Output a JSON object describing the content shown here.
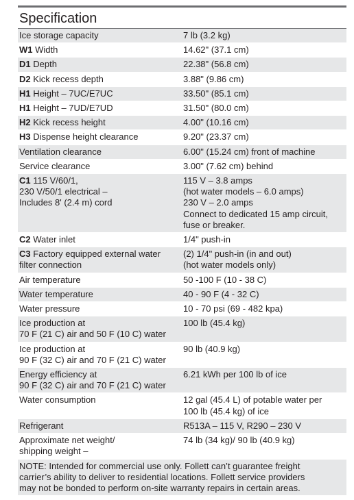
{
  "title": "Specification",
  "table": {
    "rows": [
      {
        "label": [
          "Ice storage capacity"
        ],
        "value": [
          "7 lb (3.2 kg)"
        ]
      },
      {
        "code": "W1",
        "label": [
          "Width"
        ],
        "value": [
          "14.62\" (37.1 cm)"
        ]
      },
      {
        "code": "D1",
        "label": [
          "Depth"
        ],
        "value": [
          "22.38\" (56.8 cm)"
        ]
      },
      {
        "code": "D2",
        "label": [
          "Kick recess depth"
        ],
        "value": [
          "3.88\" (9.86 cm)"
        ]
      },
      {
        "code": "H1",
        "label": [
          "Height – 7UC/E7UC"
        ],
        "value": [
          "33.50\" (85.1 cm)"
        ]
      },
      {
        "code": "H1",
        "label": [
          "Height – 7UD/E7UD"
        ],
        "value": [
          "31.50\" (80.0 cm)"
        ]
      },
      {
        "code": "H2",
        "label": [
          "Kick recess height"
        ],
        "value": [
          "4.00\" (10.16 cm)"
        ]
      },
      {
        "code": "H3",
        "label": [
          "Dispense height clearance"
        ],
        "value": [
          "9.20\" (23.37 cm)"
        ]
      },
      {
        "label": [
          "Ventilation clearance"
        ],
        "value": [
          "6.00\" (15.24 cm) front of machine"
        ]
      },
      {
        "label": [
          "Service clearance"
        ],
        "value": [
          "3.00\" (7.62 cm) behind"
        ]
      },
      {
        "code": "C1",
        "label": [
          "115 V/60/1,",
          "230 V/50/1 electrical –",
          "Includes 8' (2.4 m) cord"
        ],
        "value": [
          "115 V – 3.8 amps",
          "(hot water models – 6.0 amps)",
          "230 V – 2.0 amps",
          "Connect to dedicated 15 amp circuit,",
          "fuse or breaker."
        ]
      },
      {
        "code": "C2",
        "label": [
          "Water inlet"
        ],
        "value": [
          "1/4\" push-in"
        ]
      },
      {
        "code": "C3",
        "label": [
          "Factory equipped external water",
          "filter connection"
        ],
        "value": [
          "(2) 1/4\" push-in (in and out)",
          "(hot water models only)"
        ]
      },
      {
        "label": [
          "Air temperature"
        ],
        "value": [
          "50 -100 F (10 - 38 C)"
        ]
      },
      {
        "label": [
          "Water temperature"
        ],
        "value": [
          "40 - 90 F (4 - 32 C)"
        ]
      },
      {
        "label": [
          "Water pressure"
        ],
        "value": [
          "10 - 70 psi (69 - 482 kpa)"
        ]
      },
      {
        "label": [
          "Ice production at",
          "70 F (21 C) air and 50 F (10 C) water"
        ],
        "value": [
          "100 lb (45.4 kg)"
        ]
      },
      {
        "label": [
          "Ice production at",
          "90 F (32 C) air and 70 F (21 C) water"
        ],
        "value": [
          "90 lb (40.9 kg)"
        ]
      },
      {
        "label": [
          "Energy efficiency at",
          "90 F (32 C) air and 70 F (21 C) water"
        ],
        "value": [
          "6.21 kWh per 100 lb of ice"
        ]
      },
      {
        "label": [
          "Water consumption"
        ],
        "value": [
          "12 gal (45.4 L) of potable water per",
          "100 lb (45.4 kg) of ice"
        ]
      },
      {
        "label": [
          "Refrigerant"
        ],
        "value": [
          "R513A – 115 V, R290 – 230 V"
        ]
      },
      {
        "label": [
          "Approximate net weight/",
          "shipping weight –"
        ],
        "value": [
          "74 lb (34 kg)/ 90 lb (40.9 kg)"
        ]
      }
    ],
    "note": [
      "NOTE: Intended for commercial use only. Follett can’t guarantee freight",
      "carrier’s ability to deliver to residential locations. Follett service providers",
      "may not be bonded to perform on-site warranty repairs in certain areas."
    ]
  }
}
